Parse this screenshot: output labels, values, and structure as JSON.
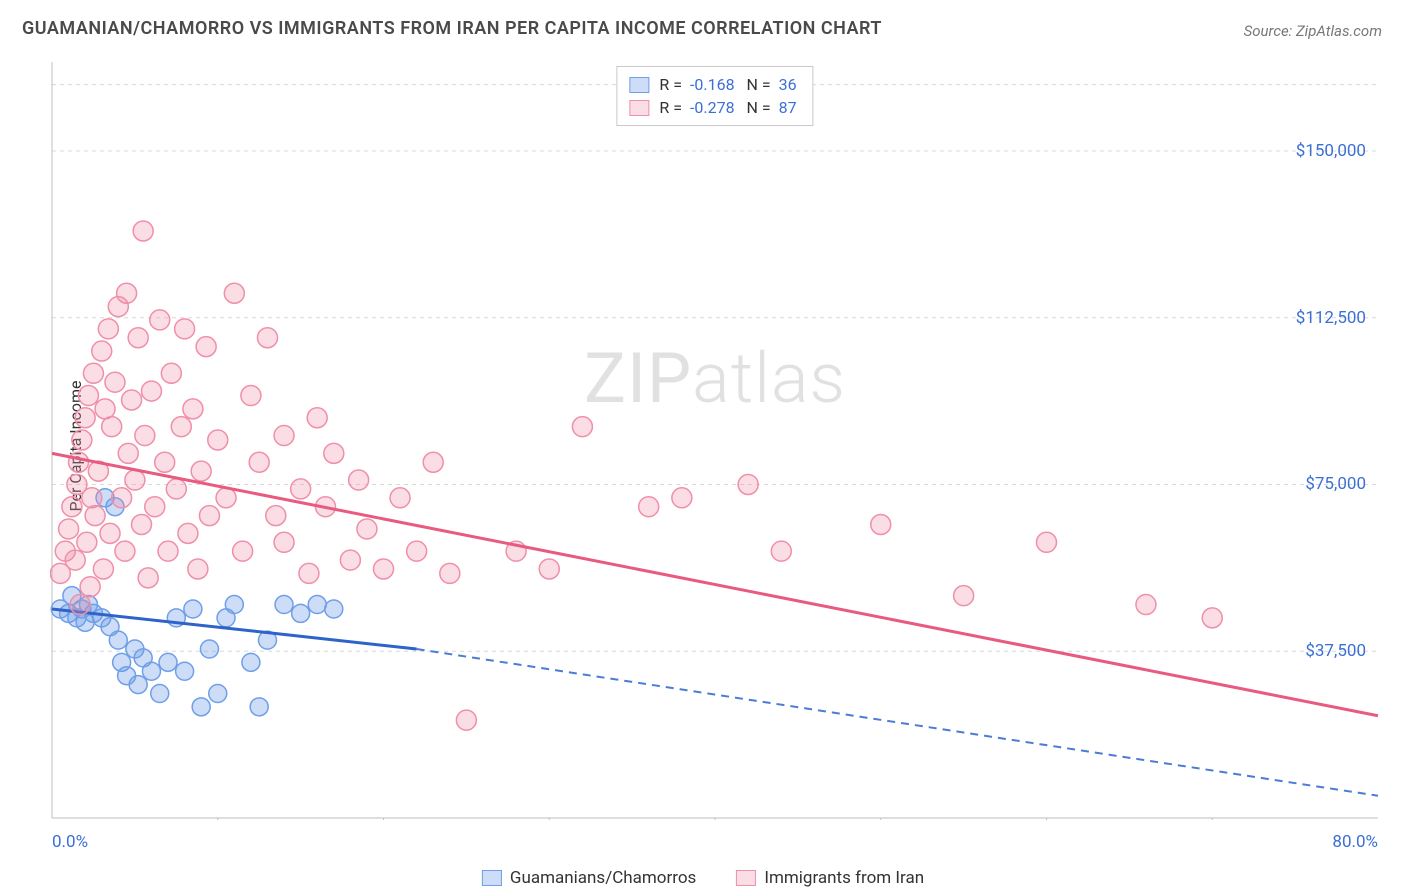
{
  "header": {
    "title": "GUAMANIAN/CHAMORRO VS IMMIGRANTS FROM IRAN PER CAPITA INCOME CORRELATION CHART",
    "source": "Source: ZipAtlas.com"
  },
  "watermark": {
    "zip": "ZIP",
    "atlas": "atlas"
  },
  "chart": {
    "type": "scatter-with-regression",
    "ylabel": "Per Capita Income",
    "xlim": [
      0,
      80
    ],
    "ylim": [
      0,
      170000
    ],
    "xticks": [
      {
        "v": 0,
        "label": "0.0%"
      },
      {
        "v": 80,
        "label": "80.0%"
      }
    ],
    "xminor": [
      10,
      20,
      30,
      40,
      50,
      60,
      70
    ],
    "yticks": [
      {
        "v": 37500,
        "label": "$37,500"
      },
      {
        "v": 75000,
        "label": "$75,000"
      },
      {
        "v": 112500,
        "label": "$112,500"
      },
      {
        "v": 150000,
        "label": "$150,000"
      }
    ],
    "grid_color": "#d8d8d8",
    "axis_color": "#bfbfbf",
    "background_color": "#ffffff",
    "label_color": "#3b6fd6",
    "title_fontsize": 18,
    "label_fontsize": 17,
    "series": [
      {
        "name": "Guamanians/Chamorros",
        "color": "#6f9fe8",
        "fill": "rgba(111,159,232,0.35)",
        "stroke": "#6f9fe8",
        "R": "-0.168",
        "N": "36",
        "radius": 9,
        "regression": {
          "x1": 0,
          "y1": 47000,
          "x2": 22,
          "y2": 38000,
          "solid_to": 22,
          "dash_to_x": 80,
          "dash_to_y": 5000,
          "line_color": "#2e63c9",
          "line_width": 3,
          "dash_color": "#4a7dd1"
        },
        "points": [
          [
            0.5,
            47000
          ],
          [
            1,
            46000
          ],
          [
            1.2,
            50000
          ],
          [
            1.5,
            45000
          ],
          [
            1.8,
            47000
          ],
          [
            2,
            44000
          ],
          [
            2.2,
            48000
          ],
          [
            2.5,
            46000
          ],
          [
            3,
            45000
          ],
          [
            3.2,
            72000
          ],
          [
            3.5,
            43000
          ],
          [
            3.8,
            70000
          ],
          [
            4,
            40000
          ],
          [
            4.2,
            35000
          ],
          [
            4.5,
            32000
          ],
          [
            5,
            38000
          ],
          [
            5.2,
            30000
          ],
          [
            5.5,
            36000
          ],
          [
            6,
            33000
          ],
          [
            6.5,
            28000
          ],
          [
            7,
            35000
          ],
          [
            7.5,
            45000
          ],
          [
            8,
            33000
          ],
          [
            8.5,
            47000
          ],
          [
            9,
            25000
          ],
          [
            9.5,
            38000
          ],
          [
            10,
            28000
          ],
          [
            10.5,
            45000
          ],
          [
            11,
            48000
          ],
          [
            12,
            35000
          ],
          [
            12.5,
            25000
          ],
          [
            13,
            40000
          ],
          [
            14,
            48000
          ],
          [
            15,
            46000
          ],
          [
            16,
            48000
          ],
          [
            17,
            47000
          ]
        ]
      },
      {
        "name": "Immigrants from Iran",
        "color": "#f08fa8",
        "fill": "rgba(240,143,168,0.30)",
        "stroke": "#f08fa8",
        "R": "-0.278",
        "N": "87",
        "radius": 10,
        "regression": {
          "x1": 0,
          "y1": 82000,
          "x2": 80,
          "y2": 23000,
          "solid_to": 80,
          "line_color": "#e85a7f",
          "line_width": 3
        },
        "points": [
          [
            0.5,
            55000
          ],
          [
            0.8,
            60000
          ],
          [
            1,
            65000
          ],
          [
            1.2,
            70000
          ],
          [
            1.4,
            58000
          ],
          [
            1.5,
            75000
          ],
          [
            1.6,
            80000
          ],
          [
            1.7,
            48000
          ],
          [
            1.8,
            85000
          ],
          [
            2,
            90000
          ],
          [
            2.1,
            62000
          ],
          [
            2.2,
            95000
          ],
          [
            2.3,
            52000
          ],
          [
            2.4,
            72000
          ],
          [
            2.5,
            100000
          ],
          [
            2.6,
            68000
          ],
          [
            2.8,
            78000
          ],
          [
            3,
            105000
          ],
          [
            3.1,
            56000
          ],
          [
            3.2,
            92000
          ],
          [
            3.4,
            110000
          ],
          [
            3.5,
            64000
          ],
          [
            3.6,
            88000
          ],
          [
            3.8,
            98000
          ],
          [
            4,
            115000
          ],
          [
            4.2,
            72000
          ],
          [
            4.4,
            60000
          ],
          [
            4.5,
            118000
          ],
          [
            4.6,
            82000
          ],
          [
            4.8,
            94000
          ],
          [
            5,
            76000
          ],
          [
            5.2,
            108000
          ],
          [
            5.4,
            66000
          ],
          [
            5.5,
            132000
          ],
          [
            5.6,
            86000
          ],
          [
            5.8,
            54000
          ],
          [
            6,
            96000
          ],
          [
            6.2,
            70000
          ],
          [
            6.5,
            112000
          ],
          [
            6.8,
            80000
          ],
          [
            7,
            60000
          ],
          [
            7.2,
            100000
          ],
          [
            7.5,
            74000
          ],
          [
            7.8,
            88000
          ],
          [
            8,
            110000
          ],
          [
            8.2,
            64000
          ],
          [
            8.5,
            92000
          ],
          [
            8.8,
            56000
          ],
          [
            9,
            78000
          ],
          [
            9.3,
            106000
          ],
          [
            9.5,
            68000
          ],
          [
            10,
            85000
          ],
          [
            10.5,
            72000
          ],
          [
            11,
            118000
          ],
          [
            11.5,
            60000
          ],
          [
            12,
            95000
          ],
          [
            12.5,
            80000
          ],
          [
            13,
            108000
          ],
          [
            13.5,
            68000
          ],
          [
            14,
            86000
          ],
          [
            14,
            62000
          ],
          [
            15,
            74000
          ],
          [
            15.5,
            55000
          ],
          [
            16,
            90000
          ],
          [
            16.5,
            70000
          ],
          [
            17,
            82000
          ],
          [
            18,
            58000
          ],
          [
            18.5,
            76000
          ],
          [
            19,
            65000
          ],
          [
            20,
            56000
          ],
          [
            21,
            72000
          ],
          [
            22,
            60000
          ],
          [
            23,
            80000
          ],
          [
            24,
            55000
          ],
          [
            25,
            22000
          ],
          [
            28,
            60000
          ],
          [
            30,
            56000
          ],
          [
            32,
            88000
          ],
          [
            36,
            70000
          ],
          [
            38,
            72000
          ],
          [
            42,
            75000
          ],
          [
            44,
            60000
          ],
          [
            50,
            66000
          ],
          [
            55,
            50000
          ],
          [
            60,
            62000
          ],
          [
            66,
            48000
          ],
          [
            70,
            45000
          ]
        ]
      }
    ],
    "legend_bottom": [
      {
        "swatch": 0,
        "label": "Guamanians/Chamorros"
      },
      {
        "swatch": 1,
        "label": "Immigrants from Iran"
      }
    ]
  }
}
